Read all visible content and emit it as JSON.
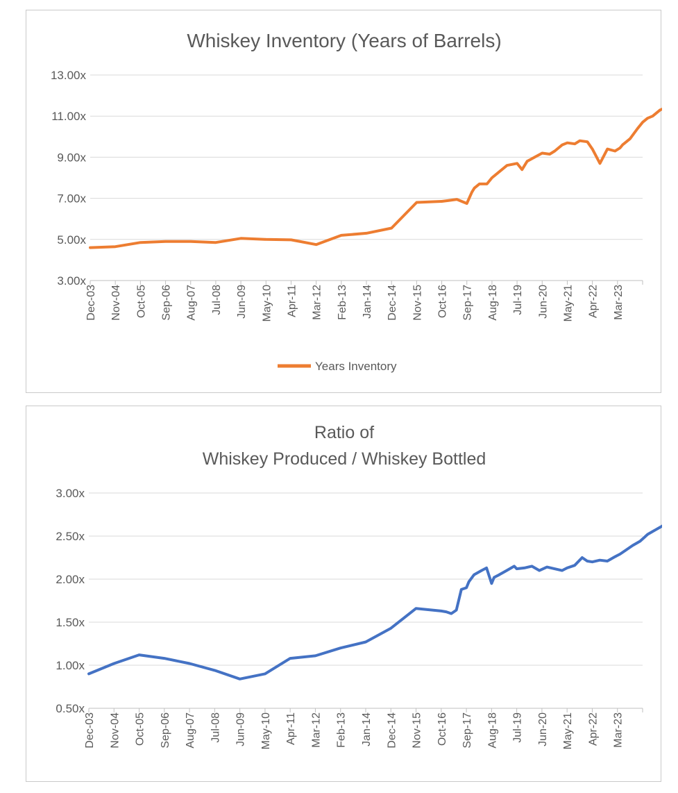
{
  "colors": {
    "series1": "#ED7D31",
    "series2": "#4472C4"
  },
  "chart_data": [
    {
      "type": "line",
      "title": "Whiskey Inventory (Years of Barrels)",
      "xlabel": "",
      "ylabel": "",
      "ylim": [
        3,
        13
      ],
      "yticks": [
        "3.00x",
        "5.00x",
        "7.00x",
        "9.00x",
        "11.00x",
        "13.00x"
      ],
      "xticks": [
        "Dec-03",
        "Nov-04",
        "Oct-05",
        "Sep-06",
        "Aug-07",
        "Jul-08",
        "Jun-09",
        "May-10",
        "Apr-11",
        "Mar-12",
        "Feb-13",
        "Jan-14",
        "Dec-14",
        "Nov-15",
        "Oct-16",
        "Sep-17",
        "Aug-18",
        "Jul-19",
        "Jun-20",
        "May-21",
        "Apr-22",
        "Mar-23"
      ],
      "grid": true,
      "legend": "bottom",
      "series": [
        {
          "name": "Years Inventory",
          "x": [
            0,
            1,
            2,
            3,
            4,
            5,
            6,
            7,
            8,
            9,
            10,
            11,
            12,
            13,
            14,
            14.3,
            14.6,
            15,
            15.2,
            15.3,
            15.5,
            15.8,
            16,
            16.3,
            16.6,
            17,
            17.2,
            17.4,
            17.7,
            18,
            18.3,
            18.5,
            18.8,
            19,
            19.3,
            19.5,
            19.8,
            20,
            20.3,
            20.6,
            20.9,
            21.1,
            21.2,
            21.3,
            21.5,
            21.8,
            22,
            22.2,
            22.4,
            22.7,
            22.9
          ],
          "values": [
            4.6,
            4.65,
            4.85,
            4.9,
            4.9,
            4.85,
            5.05,
            5.0,
            4.98,
            4.75,
            5.2,
            5.3,
            5.55,
            6.8,
            6.85,
            6.9,
            6.95,
            6.75,
            7.3,
            7.5,
            7.7,
            7.7,
            8.0,
            8.3,
            8.6,
            8.7,
            8.4,
            8.8,
            9.0,
            9.2,
            9.15,
            9.3,
            9.6,
            9.7,
            9.65,
            9.8,
            9.75,
            9.4,
            8.7,
            9.4,
            9.3,
            9.45,
            9.6,
            9.7,
            9.9,
            10.4,
            10.7,
            10.9,
            11.0,
            11.3,
            11.4
          ]
        }
      ]
    },
    {
      "type": "line",
      "title": "Ratio of\nWhiskey Produced / Whiskey Bottled",
      "title_lines": [
        "Ratio of",
        "Whiskey Produced / Whiskey Bottled"
      ],
      "xlabel": "",
      "ylabel": "",
      "ylim": [
        0.5,
        3.0
      ],
      "yticks": [
        "0.50x",
        "1.00x",
        "1.50x",
        "2.00x",
        "2.50x",
        "3.00x"
      ],
      "xticks": [
        "Dec-03",
        "Nov-04",
        "Oct-05",
        "Sep-06",
        "Aug-07",
        "Jul-08",
        "Jun-09",
        "May-10",
        "Apr-11",
        "Mar-12",
        "Feb-13",
        "Jan-14",
        "Dec-14",
        "Nov-15",
        "Oct-16",
        "Sep-17",
        "Aug-18",
        "Jul-19",
        "Jun-20",
        "May-21",
        "Apr-22",
        "Mar-23"
      ],
      "grid": true,
      "legend": "none",
      "series": [
        {
          "name": "",
          "x": [
            0,
            1,
            2,
            3,
            4,
            5,
            6,
            7,
            8,
            9,
            10,
            11,
            12,
            13,
            14,
            14.2,
            14.4,
            14.6,
            14.8,
            15,
            15.1,
            15.3,
            15.6,
            15.8,
            16,
            16.1,
            16.3,
            16.6,
            16.9,
            17,
            17.3,
            17.6,
            17.9,
            18.2,
            18.5,
            18.8,
            19,
            19.3,
            19.6,
            19.8,
            20,
            20.3,
            20.6,
            20.9,
            21.1,
            21.3,
            21.6,
            21.9,
            22.2,
            22.5,
            22.8
          ],
          "values": [
            0.9,
            1.02,
            1.12,
            1.08,
            1.02,
            0.94,
            0.84,
            0.9,
            1.08,
            1.11,
            1.2,
            1.27,
            1.43,
            1.66,
            1.63,
            1.62,
            1.6,
            1.64,
            1.88,
            1.9,
            1.97,
            2.05,
            2.1,
            2.13,
            1.95,
            2.02,
            2.05,
            2.1,
            2.15,
            2.12,
            2.13,
            2.15,
            2.1,
            2.14,
            2.12,
            2.1,
            2.13,
            2.16,
            2.25,
            2.21,
            2.2,
            2.22,
            2.21,
            2.26,
            2.29,
            2.33,
            2.39,
            2.44,
            2.52,
            2.57,
            2.62
          ]
        }
      ]
    }
  ]
}
